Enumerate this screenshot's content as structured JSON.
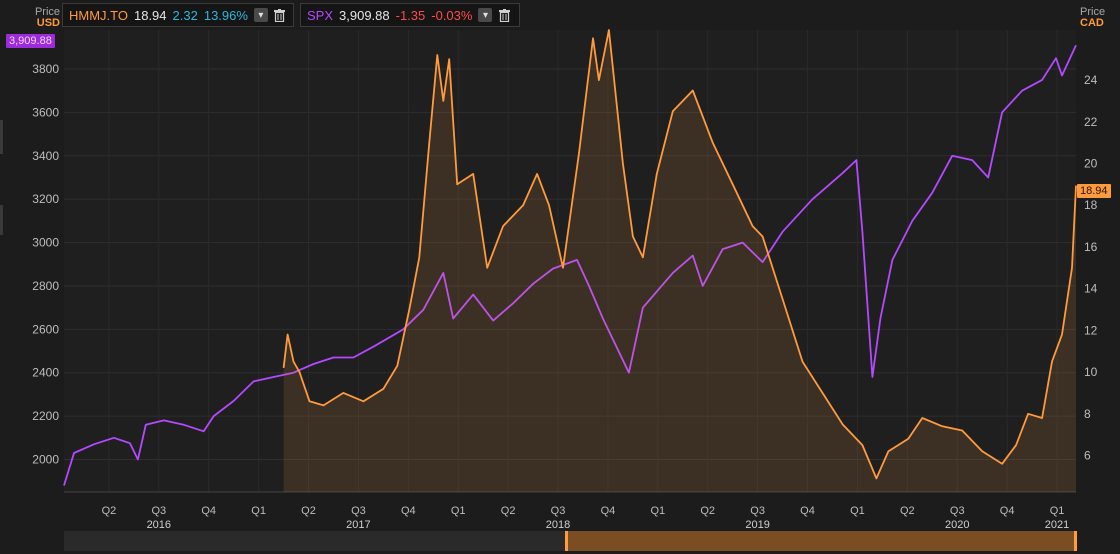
{
  "legend": {
    "hmmj": {
      "ticker": "HMMJ.TO",
      "price": "18.94",
      "change": "2.32",
      "change_pct": "13.96%",
      "color": "#ff9a3d"
    },
    "spx": {
      "ticker": "SPX",
      "price": "3,909.88",
      "change": "-1.35",
      "change_pct": "-0.03%",
      "color": "#b449ff"
    }
  },
  "left_axis": {
    "title": "Price",
    "unit": "USD",
    "last_badge": "3,909.88"
  },
  "right_axis": {
    "title": "Price",
    "unit": "CAD",
    "last_badge": "18.94"
  },
  "chart_data": {
    "type": "line",
    "title": "",
    "x_quarters": [
      "Q2",
      "Q3",
      "Q4",
      "Q1",
      "Q2",
      "Q3",
      "Q4",
      "Q1",
      "Q2",
      "Q3",
      "Q4",
      "Q1",
      "Q2",
      "Q3",
      "Q4",
      "Q1",
      "Q2",
      "Q3",
      "Q4",
      "Q1"
    ],
    "x_years": [
      "2016",
      "2017",
      "2018",
      "2019",
      "2020",
      "2021"
    ],
    "x_range": [
      2016.15,
      2021.22
    ],
    "y_left": {
      "label": "USD",
      "range": [
        1850,
        3980
      ],
      "ticks": [
        2000,
        2200,
        2400,
        2600,
        2800,
        3000,
        3200,
        3400,
        3600,
        3800
      ]
    },
    "y_right": {
      "label": "CAD",
      "range": [
        4.25,
        26.4
      ],
      "ticks": [
        6,
        8,
        10,
        12,
        14,
        16,
        18,
        20,
        22,
        24
      ]
    },
    "series": [
      {
        "name": "SPX",
        "axis": "left",
        "color": "#b449ff",
        "points": [
          [
            2016.15,
            1880
          ],
          [
            2016.2,
            2030
          ],
          [
            2016.3,
            2070
          ],
          [
            2016.4,
            2100
          ],
          [
            2016.48,
            2075
          ],
          [
            2016.52,
            2000
          ],
          [
            2016.56,
            2160
          ],
          [
            2016.65,
            2180
          ],
          [
            2016.75,
            2160
          ],
          [
            2016.85,
            2130
          ],
          [
            2016.9,
            2200
          ],
          [
            2017.0,
            2270
          ],
          [
            2017.1,
            2360
          ],
          [
            2017.2,
            2380
          ],
          [
            2017.3,
            2400
          ],
          [
            2017.4,
            2440
          ],
          [
            2017.5,
            2470
          ],
          [
            2017.6,
            2470
          ],
          [
            2017.7,
            2520
          ],
          [
            2017.85,
            2600
          ],
          [
            2017.95,
            2690
          ],
          [
            2018.05,
            2860
          ],
          [
            2018.1,
            2650
          ],
          [
            2018.2,
            2760
          ],
          [
            2018.3,
            2640
          ],
          [
            2018.4,
            2720
          ],
          [
            2018.5,
            2810
          ],
          [
            2018.6,
            2880
          ],
          [
            2018.72,
            2920
          ],
          [
            2018.78,
            2800
          ],
          [
            2018.85,
            2650
          ],
          [
            2018.98,
            2400
          ],
          [
            2019.05,
            2700
          ],
          [
            2019.2,
            2860
          ],
          [
            2019.3,
            2940
          ],
          [
            2019.35,
            2800
          ],
          [
            2019.45,
            2970
          ],
          [
            2019.55,
            3000
          ],
          [
            2019.65,
            2910
          ],
          [
            2019.75,
            3050
          ],
          [
            2019.9,
            3200
          ],
          [
            2020.05,
            3320
          ],
          [
            2020.12,
            3380
          ],
          [
            2020.15,
            3050
          ],
          [
            2020.2,
            2380
          ],
          [
            2020.24,
            2650
          ],
          [
            2020.3,
            2920
          ],
          [
            2020.4,
            3100
          ],
          [
            2020.5,
            3230
          ],
          [
            2020.6,
            3400
          ],
          [
            2020.7,
            3380
          ],
          [
            2020.78,
            3300
          ],
          [
            2020.85,
            3600
          ],
          [
            2020.95,
            3700
          ],
          [
            2021.05,
            3750
          ],
          [
            2021.12,
            3850
          ],
          [
            2021.15,
            3770
          ],
          [
            2021.22,
            3910
          ]
        ]
      },
      {
        "name": "HMMJ.TO",
        "axis": "right",
        "color": "#ff9a3d",
        "points": [
          [
            2017.25,
            10.2
          ],
          [
            2017.27,
            11.8
          ],
          [
            2017.3,
            10.5
          ],
          [
            2017.33,
            10.0
          ],
          [
            2017.38,
            8.6
          ],
          [
            2017.45,
            8.4
          ],
          [
            2017.55,
            9.0
          ],
          [
            2017.65,
            8.6
          ],
          [
            2017.75,
            9.2
          ],
          [
            2017.82,
            10.3
          ],
          [
            2017.88,
            13.0
          ],
          [
            2017.93,
            15.5
          ],
          [
            2017.98,
            21.0
          ],
          [
            2018.02,
            25.2
          ],
          [
            2018.05,
            23.0
          ],
          [
            2018.08,
            25.0
          ],
          [
            2018.12,
            19.0
          ],
          [
            2018.2,
            19.5
          ],
          [
            2018.27,
            15.0
          ],
          [
            2018.35,
            17.0
          ],
          [
            2018.45,
            18.0
          ],
          [
            2018.52,
            19.5
          ],
          [
            2018.58,
            18.0
          ],
          [
            2018.65,
            15.0
          ],
          [
            2018.73,
            20.5
          ],
          [
            2018.8,
            26.0
          ],
          [
            2018.83,
            24.0
          ],
          [
            2018.88,
            26.4
          ],
          [
            2018.95,
            20.0
          ],
          [
            2019.0,
            16.5
          ],
          [
            2019.05,
            15.5
          ],
          [
            2019.12,
            19.5
          ],
          [
            2019.2,
            22.5
          ],
          [
            2019.3,
            23.5
          ],
          [
            2019.4,
            21.0
          ],
          [
            2019.5,
            19.0
          ],
          [
            2019.6,
            17.0
          ],
          [
            2019.65,
            16.5
          ],
          [
            2019.75,
            13.5
          ],
          [
            2019.85,
            10.5
          ],
          [
            2019.95,
            9.0
          ],
          [
            2020.05,
            7.5
          ],
          [
            2020.15,
            6.5
          ],
          [
            2020.22,
            4.9
          ],
          [
            2020.28,
            6.2
          ],
          [
            2020.38,
            6.8
          ],
          [
            2020.45,
            7.8
          ],
          [
            2020.55,
            7.4
          ],
          [
            2020.65,
            7.2
          ],
          [
            2020.75,
            6.2
          ],
          [
            2020.85,
            5.6
          ],
          [
            2020.92,
            6.5
          ],
          [
            2020.98,
            8.0
          ],
          [
            2021.05,
            7.8
          ],
          [
            2021.1,
            10.5
          ],
          [
            2021.15,
            11.8
          ],
          [
            2021.2,
            15.0
          ],
          [
            2021.22,
            18.94
          ]
        ]
      }
    ]
  }
}
